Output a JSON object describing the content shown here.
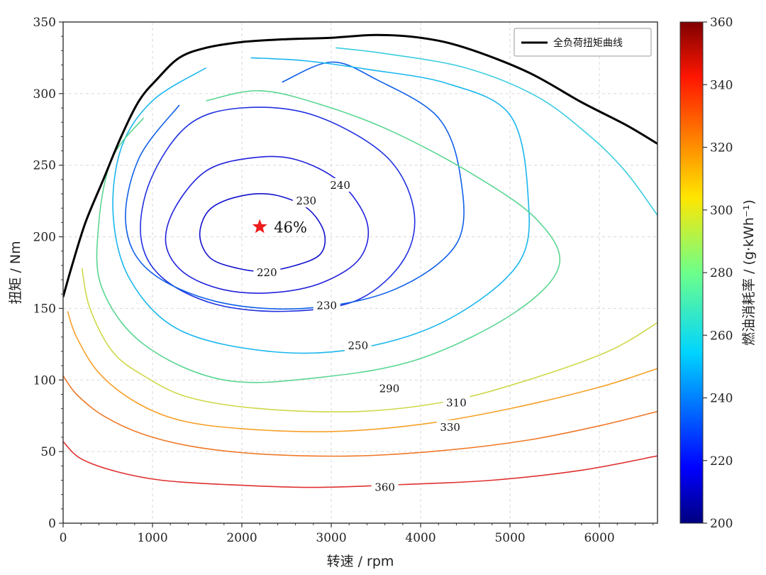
{
  "chart_data": {
    "type": "contour",
    "xlabel": "转速 / rpm",
    "ylabel": "扭矩 / Nm",
    "xlim": [
      0,
      6650
    ],
    "ylim": [
      0,
      350
    ],
    "x_ticks": [
      0,
      1000,
      2000,
      3000,
      4000,
      5000,
      6000
    ],
    "y_ticks": [
      0,
      50,
      100,
      150,
      200,
      250,
      300,
      350
    ],
    "grid": true,
    "colorbar": {
      "label": "燃油消耗率 / (g·kWh⁻¹)",
      "min": 200,
      "max": 360,
      "ticks": [
        200,
        220,
        240,
        260,
        280,
        300,
        320,
        340,
        360
      ],
      "colormap": "jet"
    },
    "legend": {
      "placement": "top-right",
      "entries": [
        "全负荷扭矩曲线"
      ]
    },
    "full_load_curve": {
      "name": "全负荷扭矩曲线",
      "color": "#000000",
      "points": [
        [
          0,
          158
        ],
        [
          100,
          180
        ],
        [
          250,
          210
        ],
        [
          450,
          240
        ],
        [
          650,
          270
        ],
        [
          850,
          295
        ],
        [
          1050,
          310
        ],
        [
          1300,
          325
        ],
        [
          1600,
          332
        ],
        [
          2000,
          336
        ],
        [
          2500,
          338
        ],
        [
          3000,
          339
        ],
        [
          3500,
          341
        ],
        [
          4000,
          339
        ],
        [
          4500,
          332
        ],
        [
          5200,
          315
        ],
        [
          5800,
          294
        ],
        [
          6300,
          278
        ],
        [
          6650,
          265
        ]
      ]
    },
    "contours": [
      {
        "level": 220,
        "color": "#1010cc",
        "label": "220",
        "label_at": [
          2280,
          175
        ],
        "closed": true,
        "points": [
          [
            2150,
            230
          ],
          [
            2450,
            228
          ],
          [
            2750,
            219
          ],
          [
            2920,
            203
          ],
          [
            2880,
            188
          ],
          [
            2600,
            180
          ],
          [
            2250,
            176
          ],
          [
            1950,
            178
          ],
          [
            1650,
            185
          ],
          [
            1530,
            200
          ],
          [
            1600,
            216
          ],
          [
            1800,
            225
          ]
        ]
      },
      {
        "level": 230,
        "color": "#2020dd",
        "label": "230",
        "label_at": [
          2720,
          225
        ],
        "closed": true,
        "points": [
          [
            2100,
            255
          ],
          [
            2600,
            254
          ],
          [
            3100,
            238
          ],
          [
            3400,
            210
          ],
          [
            3320,
            185
          ],
          [
            2900,
            168
          ],
          [
            2350,
            161
          ],
          [
            1800,
            163
          ],
          [
            1350,
            175
          ],
          [
            1150,
            195
          ],
          [
            1250,
            220
          ],
          [
            1600,
            246
          ]
        ]
      },
      {
        "level": 230,
        "color": "#2030e0",
        "label": "230",
        "label_at": [
          2950,
          152
        ],
        "closed": true,
        "points": [
          [
            2000,
            290
          ],
          [
            2800,
            285
          ],
          [
            3600,
            257
          ],
          [
            3920,
            220
          ],
          [
            3820,
            185
          ],
          [
            3300,
            156
          ],
          [
            2500,
            148
          ],
          [
            1700,
            153
          ],
          [
            1100,
            172
          ],
          [
            870,
            200
          ],
          [
            980,
            240
          ],
          [
            1400,
            278
          ]
        ]
      },
      {
        "level": 240,
        "color": "#1060e8",
        "label": "240",
        "label_at": [
          3100,
          236
        ],
        "closed": false,
        "points": [
          [
            2450,
            308
          ],
          [
            3000,
            322
          ],
          [
            3500,
            310
          ],
          [
            4200,
            283
          ],
          [
            4450,
            240
          ],
          [
            4400,
            195
          ],
          [
            3700,
            163
          ],
          [
            2700,
            150
          ],
          [
            1700,
            155
          ],
          [
            950,
            177
          ],
          [
            700,
            210
          ],
          [
            850,
            255
          ],
          [
            1300,
            292
          ]
        ]
      },
      {
        "level": 250,
        "color": "#1ab6ee",
        "label": "250",
        "label_at": [
          3300,
          124
        ],
        "closed": false,
        "points": [
          [
            2100,
            325
          ],
          [
            2700,
            323
          ],
          [
            3400,
            317
          ],
          [
            4300,
            307
          ],
          [
            5000,
            285
          ],
          [
            5200,
            230
          ],
          [
            5100,
            182
          ],
          [
            4300,
            142
          ],
          [
            3300,
            122
          ],
          [
            2300,
            120
          ],
          [
            1300,
            135
          ],
          [
            750,
            170
          ],
          [
            560,
            215
          ],
          [
            650,
            262
          ],
          [
            1000,
            295
          ],
          [
            1600,
            318
          ]
        ]
      },
      {
        "level": 270,
        "color": "#3ccde0",
        "label": "",
        "label_at": null,
        "closed": false,
        "points": [
          [
            3050,
            332
          ],
          [
            3600,
            328
          ],
          [
            4500,
            318
          ],
          [
            5300,
            298
          ],
          [
            5900,
            270
          ],
          [
            6300,
            245
          ],
          [
            6650,
            215
          ]
        ]
      },
      {
        "level": 270,
        "color": "#5ad690",
        "label": "",
        "label_at": null,
        "closed": false,
        "points": [
          [
            1600,
            295
          ],
          [
            2200,
            302
          ],
          [
            2900,
            292
          ],
          [
            3700,
            273
          ],
          [
            4600,
            243
          ],
          [
            5300,
            212
          ],
          [
            5550,
            180
          ],
          [
            5050,
            147
          ],
          [
            4000,
            115
          ],
          [
            2900,
            102
          ],
          [
            1800,
            100
          ],
          [
            900,
            125
          ],
          [
            430,
            165
          ],
          [
            400,
            210
          ],
          [
            550,
            255
          ],
          [
            900,
            283
          ]
        ]
      },
      {
        "level": 290,
        "color": "#cfd84a",
        "label": "290",
        "label_at": [
          3650,
          94
        ],
        "closed": false,
        "points": [
          [
            210,
            178
          ],
          [
            300,
            150
          ],
          [
            550,
            120
          ],
          [
            900,
            103
          ],
          [
            1400,
            88
          ],
          [
            2200,
            80
          ],
          [
            3300,
            78
          ],
          [
            4300,
            85
          ],
          [
            5200,
            100
          ],
          [
            6100,
            120
          ],
          [
            6650,
            140
          ]
        ]
      },
      {
        "level": 310,
        "color": "#f7a028",
        "label": "310",
        "label_at": [
          4400,
          84
        ],
        "closed": false,
        "points": [
          [
            50,
            148
          ],
          [
            150,
            130
          ],
          [
            400,
            105
          ],
          [
            800,
            85
          ],
          [
            1300,
            72
          ],
          [
            2000,
            66
          ],
          [
            3000,
            64
          ],
          [
            4000,
            69
          ],
          [
            5000,
            80
          ],
          [
            6000,
            95
          ],
          [
            6650,
            108
          ]
        ]
      },
      {
        "level": 330,
        "color": "#f07828",
        "label": "330",
        "label_at": [
          4330,
          67
        ],
        "closed": false,
        "points": [
          [
            0,
            103
          ],
          [
            150,
            90
          ],
          [
            450,
            75
          ],
          [
            900,
            62
          ],
          [
            1500,
            53
          ],
          [
            2300,
            48
          ],
          [
            3300,
            47
          ],
          [
            4300,
            51
          ],
          [
            5200,
            58
          ],
          [
            6000,
            68
          ],
          [
            6650,
            78
          ]
        ]
      },
      {
        "level": 350,
        "color": "#e03030",
        "label": "",
        "label_at": null,
        "closed": false,
        "points": [
          [
            0,
            57
          ],
          [
            200,
            45
          ],
          [
            600,
            36
          ],
          [
            1100,
            30
          ],
          [
            1800,
            27
          ],
          [
            2800,
            25
          ],
          [
            3800,
            27
          ],
          [
            4800,
            30
          ],
          [
            5800,
            37
          ],
          [
            6650,
            47
          ]
        ]
      },
      {
        "level": 360,
        "color": "#e04848",
        "label": "360",
        "label_at": [
          3600,
          25
        ],
        "closed": false,
        "points": [
          [
            3050,
            25
          ]
        ]
      }
    ],
    "optimum_point": {
      "x": 2200,
      "y": 207,
      "marker": "star",
      "color": "#ee1c1c",
      "annotation": "46%"
    }
  }
}
